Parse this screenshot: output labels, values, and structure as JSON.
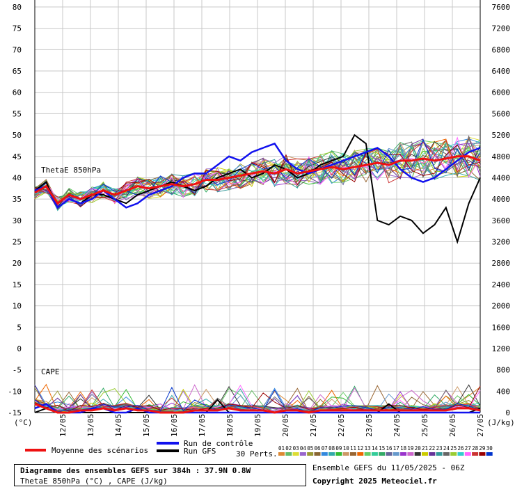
{
  "chart_data": {
    "type": "line",
    "title": "Diagramme des ensembles GEFS sur 384h : 37.9N 0.8W",
    "subtitle": "ThetaE 850hPa (°C) , CAPE (J/kg)",
    "left_axis": {
      "ticks": [
        80,
        75,
        70,
        65,
        60,
        55,
        50,
        45,
        40,
        35,
        30,
        25,
        20,
        15,
        10,
        5,
        0,
        -5,
        -10,
        -15
      ],
      "unit": "(°C)",
      "ylim": [
        -15,
        80
      ]
    },
    "right_axis": {
      "ticks": [
        7600,
        7200,
        6800,
        6400,
        6000,
        5600,
        5200,
        4800,
        4400,
        4000,
        3600,
        3200,
        2800,
        2400,
        2000,
        1600,
        1200,
        800,
        400,
        0
      ],
      "unit": "(J/kg)"
    },
    "x_labels": [
      "12/05",
      "13/05",
      "14/05",
      "15/05",
      "16/05",
      "17/05",
      "18/05",
      "19/05",
      "20/05",
      "21/05",
      "22/05",
      "23/05",
      "24/05",
      "25/05",
      "26/05",
      "27/05"
    ],
    "panel_labels": {
      "theta": "ThetaE 850hPa",
      "cape": "CAPE"
    },
    "series": [
      {
        "name": "Moyenne des scénarios",
        "color": "#ee1111",
        "theta": [
          36.5,
          38,
          34,
          36,
          35,
          36,
          37,
          36,
          37,
          38,
          37.5,
          38,
          38.5,
          38,
          38.5,
          39.5,
          39.5,
          40,
          40.5,
          41,
          41.5,
          41,
          42,
          41,
          41.5,
          42,
          42.5,
          42,
          42.5,
          43,
          43.5,
          43,
          44,
          44,
          44.5,
          44,
          44.5,
          45,
          45,
          44
        ],
        "cape": [
          -13,
          -14,
          -15,
          -15,
          -14.5,
          -14.5,
          -14,
          -14.5,
          -14,
          -14.5,
          -14.5,
          -15,
          -15,
          -15,
          -14.5,
          -14.5,
          -14.5,
          -14,
          -14.5,
          -14.5,
          -14.5,
          -15,
          -14.5,
          -14.5,
          -15,
          -14.5,
          -14.5,
          -14.5,
          -14.5,
          -14.5,
          -14.5,
          -14.5,
          -14.5,
          -14.5,
          -14.5,
          -14.5,
          -14.5,
          -14,
          -14,
          -14.5
        ]
      },
      {
        "name": "Run de contrôle",
        "color": "#1111ee",
        "theta": [
          37,
          38,
          33,
          35,
          34,
          35,
          37,
          35,
          33,
          34,
          36,
          37,
          38,
          40,
          41,
          41,
          43,
          45,
          44,
          46,
          47,
          48,
          44,
          42,
          41,
          42,
          43,
          44,
          45,
          46,
          47,
          45,
          42,
          40,
          39,
          40,
          42,
          44,
          46,
          47
        ],
        "cape": [
          -14,
          -13,
          -15,
          -15,
          -15,
          -14,
          -14,
          -15,
          -15,
          -14,
          -15,
          -15,
          -15,
          -15,
          -15,
          -15,
          -15,
          -15,
          -15,
          -15,
          -15,
          -15,
          -15,
          -15,
          -15,
          -15,
          -15,
          -15,
          -15,
          -15,
          -15,
          -15,
          -15,
          -15,
          -15,
          -15,
          -15,
          -15,
          -15,
          -15
        ]
      },
      {
        "name": "Run GFS",
        "color": "#000000",
        "theta": [
          37,
          39,
          33,
          35,
          34,
          36,
          36,
          35,
          34,
          36,
          37,
          38,
          39,
          38,
          37,
          38,
          40,
          41,
          42,
          40,
          41,
          43,
          42,
          40,
          41,
          43,
          44,
          45,
          50,
          48,
          30,
          29,
          31,
          30,
          27,
          29,
          33,
          25,
          34,
          40
        ],
        "cape": [
          -15,
          -14,
          -15,
          -15,
          -15,
          -15,
          -15,
          -15,
          -15,
          -15,
          -15,
          -15,
          -15,
          -15,
          -15,
          -15,
          -12,
          -15,
          -15,
          -15,
          -15,
          -15,
          -15,
          -15,
          -15,
          -15,
          -15,
          -15,
          -15,
          -15,
          -15,
          -13,
          -15,
          -15,
          -15,
          -15,
          -15,
          -15,
          -15,
          -14
        ]
      }
    ],
    "perturbations": {
      "label": "30 Perts.",
      "count": 30,
      "colors": [
        "#dd8833",
        "#66bb66",
        "#dddd33",
        "#9966cc",
        "#999933",
        "#886633",
        "#3388dd",
        "#33aaaa",
        "#33bb33",
        "#cc9966",
        "#996633",
        "#ee6600",
        "#66cc66",
        "#33cc99",
        "#33aa66",
        "#666699",
        "#6699cc",
        "#9933cc",
        "#cc66cc",
        "#333333",
        "#cccc00",
        "#663399",
        "#339999",
        "#666666",
        "#99cc33",
        "#33cccc",
        "#ff66ff",
        "#cc3333",
        "#990000",
        "#0033cc"
      ]
    },
    "legend": [
      {
        "label": "Moyenne des scénarios",
        "color": "#ee1111"
      },
      {
        "label": "Run de contrôle",
        "color": "#1111ee"
      },
      {
        "label": "Run GFS",
        "color": "#000000"
      }
    ],
    "grid": true
  },
  "footer": {
    "title": "Diagramme des ensembles GEFS sur 384h : 37.9N 0.8W",
    "subtitle": "ThetaE 850hPa (°C) , CAPE (J/kg)",
    "run_info": "Ensemble GEFS du 11/05/2025 - 06Z",
    "copyright": "Copyright 2025 Meteociel.fr"
  }
}
